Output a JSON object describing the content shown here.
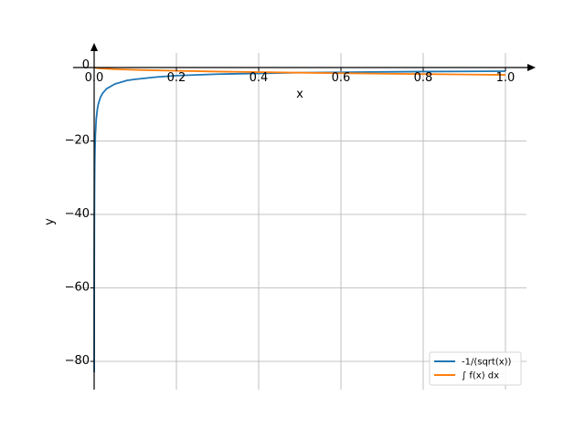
{
  "chart_data": {
    "type": "line",
    "title": "",
    "xlabel": "x",
    "ylabel": "y",
    "xlim": [
      0.0,
      1.05
    ],
    "ylim": [
      -88,
      8
    ],
    "grid": true,
    "legend_placement": "lower-right",
    "x_ticks": [
      {
        "value": 0.0,
        "label": "0.0"
      },
      {
        "value": 0.2,
        "label": "0.2"
      },
      {
        "value": 0.4,
        "label": "0.4"
      },
      {
        "value": 0.6,
        "label": "0.6"
      },
      {
        "value": 0.8,
        "label": "0.8"
      },
      {
        "value": 1.0,
        "label": "1.0"
      }
    ],
    "y_ticks": [
      {
        "value": 0,
        "label": "0"
      },
      {
        "value": -20,
        "label": "−20"
      },
      {
        "value": -40,
        "label": "−40"
      },
      {
        "value": -60,
        "label": "−60"
      },
      {
        "value": -80,
        "label": "−80"
      }
    ],
    "series": [
      {
        "name": "-1/(sqrt(x))",
        "color": "#1f77b4",
        "x": [
          0.000145,
          0.0002,
          0.0003,
          0.0005,
          0.0008,
          0.001,
          0.0015,
          0.002,
          0.003,
          0.005,
          0.008,
          0.01,
          0.015,
          0.02,
          0.03,
          0.05,
          0.08,
          0.1,
          0.15,
          0.2,
          0.3,
          0.4,
          0.5,
          0.6,
          0.7,
          0.8,
          0.9,
          1.0
        ],
        "y": [
          -83.0,
          -70.7,
          -57.7,
          -44.7,
          -35.4,
          -31.6,
          -25.8,
          -22.4,
          -18.3,
          -14.1,
          -11.2,
          -10.0,
          -8.2,
          -7.1,
          -5.8,
          -4.5,
          -3.5,
          -3.2,
          -2.6,
          -2.2,
          -1.8,
          -1.6,
          -1.4,
          -1.3,
          -1.2,
          -1.1,
          -1.05,
          -1.0
        ]
      },
      {
        "name": "∫ f(x) dx",
        "color": "#ff7f0e",
        "x": [
          0.0,
          0.01,
          0.05,
          0.1,
          0.2,
          0.3,
          0.4,
          0.5,
          0.6,
          0.7,
          0.8,
          0.9,
          1.0
        ],
        "y": [
          0.0,
          -0.2,
          -0.45,
          -0.63,
          -0.89,
          -1.1,
          -1.26,
          -1.41,
          -1.55,
          -1.67,
          -1.79,
          -1.9,
          -2.0
        ]
      }
    ]
  }
}
